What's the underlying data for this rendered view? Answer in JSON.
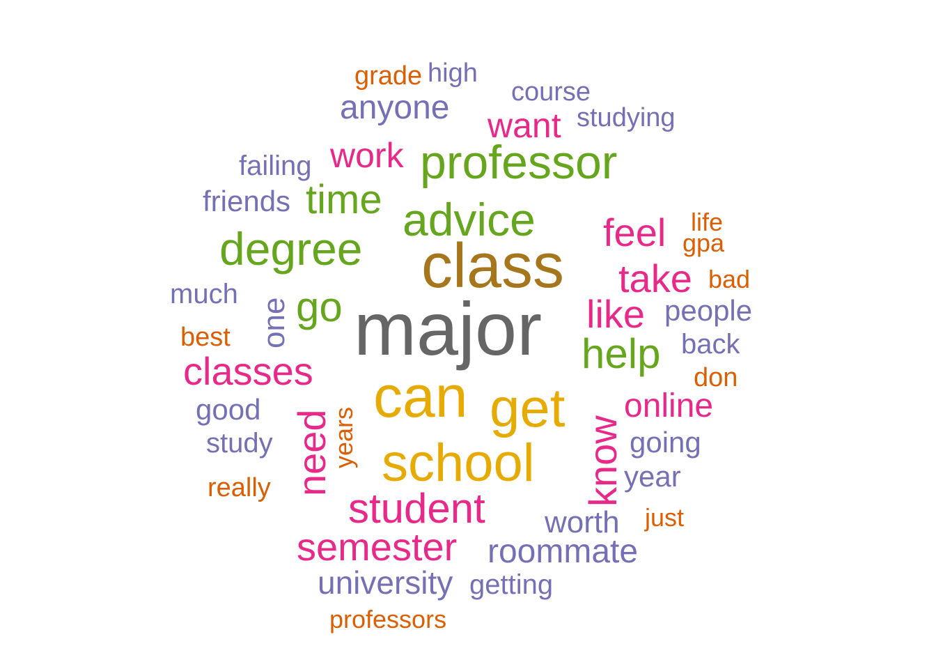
{
  "palette": {
    "gray": "#666666",
    "brown": "#a6761d",
    "gold": "#e6ab02",
    "green": "#66a61e",
    "magenta": "#e7298a",
    "purple": "#7570b3",
    "orange": "#d95f02"
  },
  "words": [
    {
      "text": "major",
      "color": "gray"
    },
    {
      "text": "class",
      "color": "brown"
    },
    {
      "text": "can",
      "color": "gold"
    },
    {
      "text": "get",
      "color": "gold"
    },
    {
      "text": "school",
      "color": "gold"
    },
    {
      "text": "professor",
      "color": "green"
    },
    {
      "text": "advice",
      "color": "green"
    },
    {
      "text": "degree",
      "color": "green"
    },
    {
      "text": "time",
      "color": "green"
    },
    {
      "text": "help",
      "color": "green"
    },
    {
      "text": "go",
      "color": "green"
    },
    {
      "text": "student",
      "color": "magenta"
    },
    {
      "text": "semester",
      "color": "magenta"
    },
    {
      "text": "classes",
      "color": "magenta"
    },
    {
      "text": "need",
      "color": "magenta"
    },
    {
      "text": "know",
      "color": "magenta"
    },
    {
      "text": "like",
      "color": "magenta"
    },
    {
      "text": "take",
      "color": "magenta"
    },
    {
      "text": "feel",
      "color": "magenta"
    },
    {
      "text": "online",
      "color": "magenta"
    },
    {
      "text": "want",
      "color": "magenta"
    },
    {
      "text": "work",
      "color": "magenta"
    },
    {
      "text": "anyone",
      "color": "purple"
    },
    {
      "text": "roommate",
      "color": "purple"
    },
    {
      "text": "university",
      "color": "purple"
    },
    {
      "text": "worth",
      "color": "purple"
    },
    {
      "text": "going",
      "color": "purple"
    },
    {
      "text": "year",
      "color": "purple"
    },
    {
      "text": "people",
      "color": "purple"
    },
    {
      "text": "back",
      "color": "purple"
    },
    {
      "text": "good",
      "color": "purple"
    },
    {
      "text": "study",
      "color": "purple"
    },
    {
      "text": "much",
      "color": "purple"
    },
    {
      "text": "friends",
      "color": "purple"
    },
    {
      "text": "failing",
      "color": "purple"
    },
    {
      "text": "course",
      "color": "purple"
    },
    {
      "text": "studying",
      "color": "purple"
    },
    {
      "text": "high",
      "color": "purple"
    },
    {
      "text": "getting",
      "color": "purple"
    },
    {
      "text": "one",
      "color": "purple"
    },
    {
      "text": "grade",
      "color": "orange"
    },
    {
      "text": "life",
      "color": "orange"
    },
    {
      "text": "gpa",
      "color": "orange"
    },
    {
      "text": "bad",
      "color": "orange"
    },
    {
      "text": "best",
      "color": "orange"
    },
    {
      "text": "don",
      "color": "orange"
    },
    {
      "text": "just",
      "color": "orange"
    },
    {
      "text": "really",
      "color": "orange"
    },
    {
      "text": "professors",
      "color": "orange"
    },
    {
      "text": "years",
      "color": "orange"
    }
  ]
}
